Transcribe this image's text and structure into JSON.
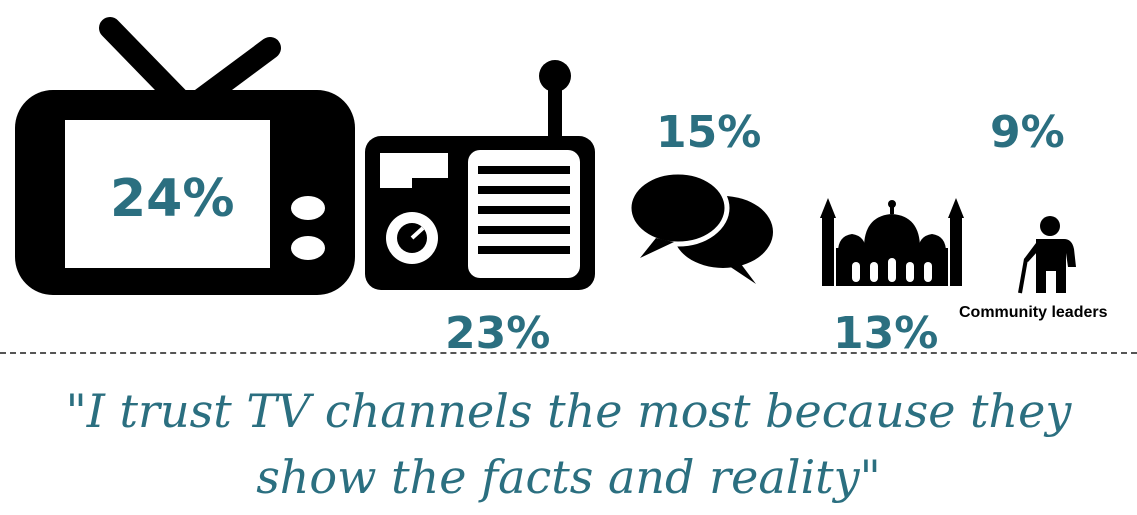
{
  "chart_data": {
    "type": "pictogram",
    "categories": [
      "TV",
      "Radio",
      "Word of mouth",
      "Religious leaders",
      "Community leaders"
    ],
    "values": [
      24,
      23,
      15,
      13,
      9
    ],
    "unit": "%",
    "labels": [
      "24%",
      "23%",
      "15%",
      "13%",
      "9%"
    ],
    "annotations": [
      "Community leaders"
    ]
  },
  "quote": "\"I trust TV channels the most because they show the facts and reality\"",
  "colors": {
    "accent": "#2b6f80",
    "icon": "#000000"
  },
  "icons": [
    "tv-icon",
    "radio-icon",
    "speech-bubbles-icon",
    "mosque-icon",
    "elder-icon"
  ]
}
